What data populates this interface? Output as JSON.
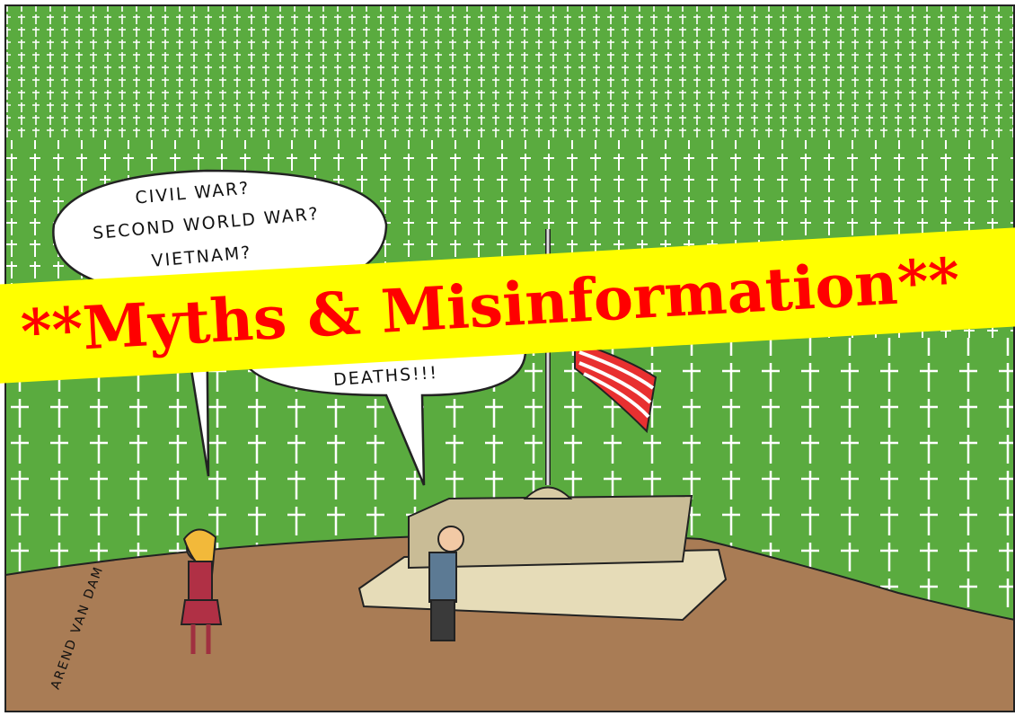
{
  "cartoon": {
    "speech_bubbles": [
      {
        "lines": [
          "CIVIL WAR?",
          "SECOND WORLD WAR?",
          "VIETNAM?"
        ]
      },
      {
        "lines": [
          "DEATHS!!!"
        ]
      }
    ],
    "signature": "AREND VAN DAM"
  },
  "banner": {
    "text": "**Myths & Misinformation**"
  }
}
